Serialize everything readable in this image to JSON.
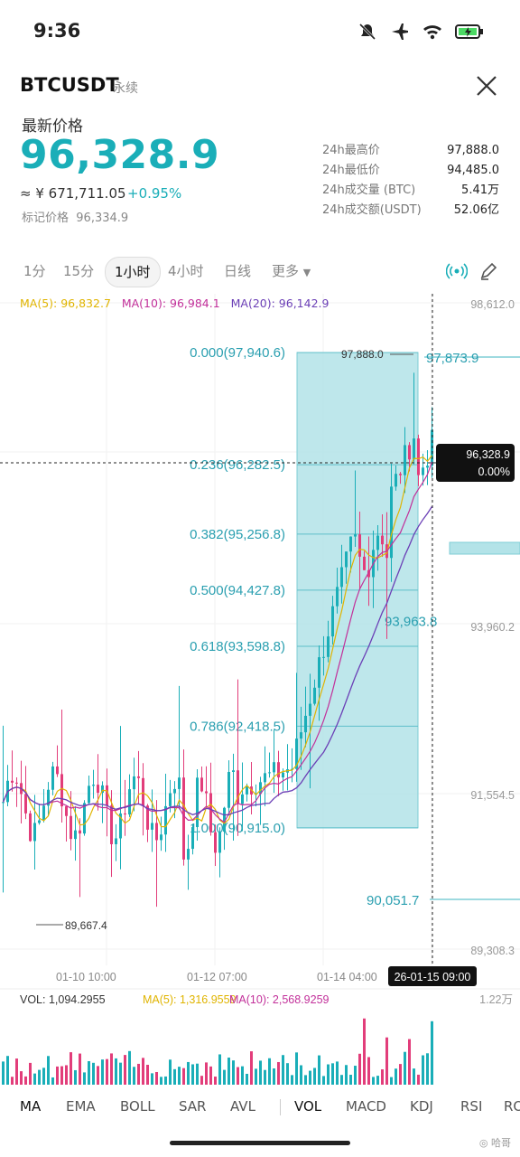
{
  "status": {
    "time": "9:36"
  },
  "header": {
    "symbol": "BTCUSDT",
    "type": "永续"
  },
  "price": {
    "label": "最新价格",
    "last": "96,328.9",
    "cny": "≈ ¥ 671,711.05",
    "change": "+0.95%",
    "mark_label": "标记价格",
    "mark_value": "96,334.9"
  },
  "stats": [
    {
      "k": "24h最高价",
      "v": "97,888.0"
    },
    {
      "k": "24h最低价",
      "v": "94,485.0"
    },
    {
      "k": "24h成交量 (BTC)",
      "v": "5.41万"
    },
    {
      "k": "24h成交额(USDT)",
      "v": "52.06亿"
    }
  ],
  "timeframes": [
    "1分",
    "15分",
    "1小时",
    "4小时",
    "日线",
    "更多"
  ],
  "active_timeframe": "1小时",
  "ma": {
    "ma5": "MA(5): 96,832.7",
    "ma10": "MA(10): 96,984.1",
    "ma20": "MA(20): 96,142.9"
  },
  "price_axis": [
    "98,612.0",
    "93,960.2",
    "91,554.5",
    "89,308.3"
  ],
  "fib_levels": [
    {
      "label": "0.000(97,940.6)"
    },
    {
      "label": "0.236(96,282.5)"
    },
    {
      "label": "0.382(95,256.8)"
    },
    {
      "label": "0.500(94,427.8)"
    },
    {
      "label": "0.618(93,598.8)"
    },
    {
      "label": "0.786(92,418.5)"
    },
    {
      "label": "1.000(90,915.0)"
    }
  ],
  "annotations": {
    "high_marker": "97,888.0",
    "low_marker": "89,667.4",
    "level_97873": "97,873.9",
    "level_93963": "93,963.8",
    "level_90051": "90,051.7",
    "current_price": "96,328.9",
    "current_pct": "0.00%"
  },
  "time_axis": [
    "01-10 10:00",
    "01-12 07:00",
    "01-14 04:00"
  ],
  "crosshair_time": "26-01-15 09:00",
  "volume": {
    "vol": "VOL: 1,094.2955",
    "ma5": "MA(5): 1,316.9559",
    "ma10": "MA(10): 2,568.9259",
    "axis_max": "1.22万"
  },
  "indicator_tabs": [
    "MA",
    "EMA",
    "BOLL",
    "SAR",
    "AVL",
    "VOL",
    "MACD",
    "KDJ",
    "RSI",
    "RO"
  ],
  "watermark": "哈哥",
  "colors": {
    "accent": "#1aaeb8",
    "up": "#1aaeb8",
    "down": "#e23d7a",
    "ma5": "#e0b400",
    "ma10": "#c2309a",
    "ma20": "#6b3fb6"
  }
}
